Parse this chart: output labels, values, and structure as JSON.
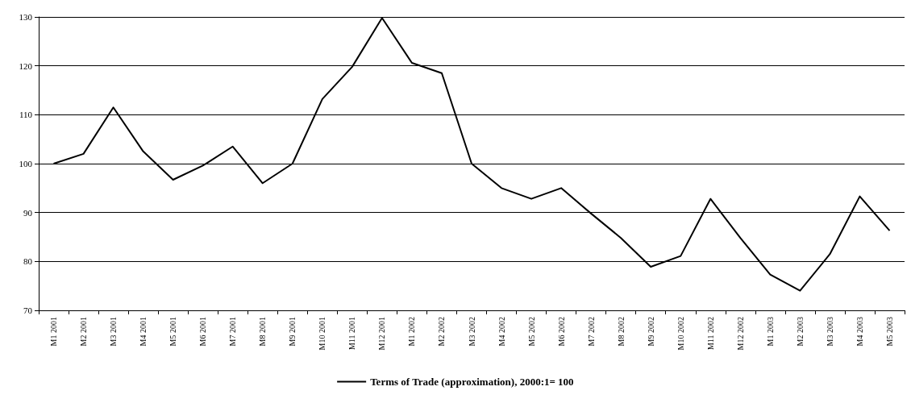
{
  "chart_data": {
    "type": "line",
    "categories": [
      "M1 2001",
      "M2 2001",
      "M3 2001",
      "M4 2001",
      "M5 2001",
      "M6 2001",
      "M7 2001",
      "M8 2001",
      "M9 2001",
      "M10 2001",
      "M11 2001",
      "M12 2001",
      "M1 2002",
      "M2 2002",
      "M3 2002",
      "M4 2002",
      "M5 2002",
      "M6 2002",
      "M7 2002",
      "M8 2002",
      "M9 2002",
      "M10 2002",
      "M11 2002",
      "M12 2002",
      "M1 2003",
      "M2 2003",
      "M3 2003",
      "M4 2003",
      "M5 2003"
    ],
    "series": [
      {
        "name": "Terms of Trade (approximation), 2000:1= 100",
        "color": "#000000",
        "values": [
          100,
          102,
          111.5,
          102.5,
          96.7,
          99.6,
          103.5,
          96,
          100,
          113.2,
          119.8,
          129.8,
          120.6,
          118.5,
          100,
          95,
          92.8,
          95,
          89.8,
          84.8,
          78.9,
          81.1,
          92.8,
          84.8,
          77.3,
          74,
          81.5,
          93.3,
          86.3
        ]
      }
    ],
    "ylim": [
      70,
      130
    ],
    "yticks": [
      70,
      80,
      90,
      100,
      110,
      120,
      130
    ],
    "grid": "y",
    "legend": "bottom",
    "marker": "none",
    "line_style": "solid"
  }
}
